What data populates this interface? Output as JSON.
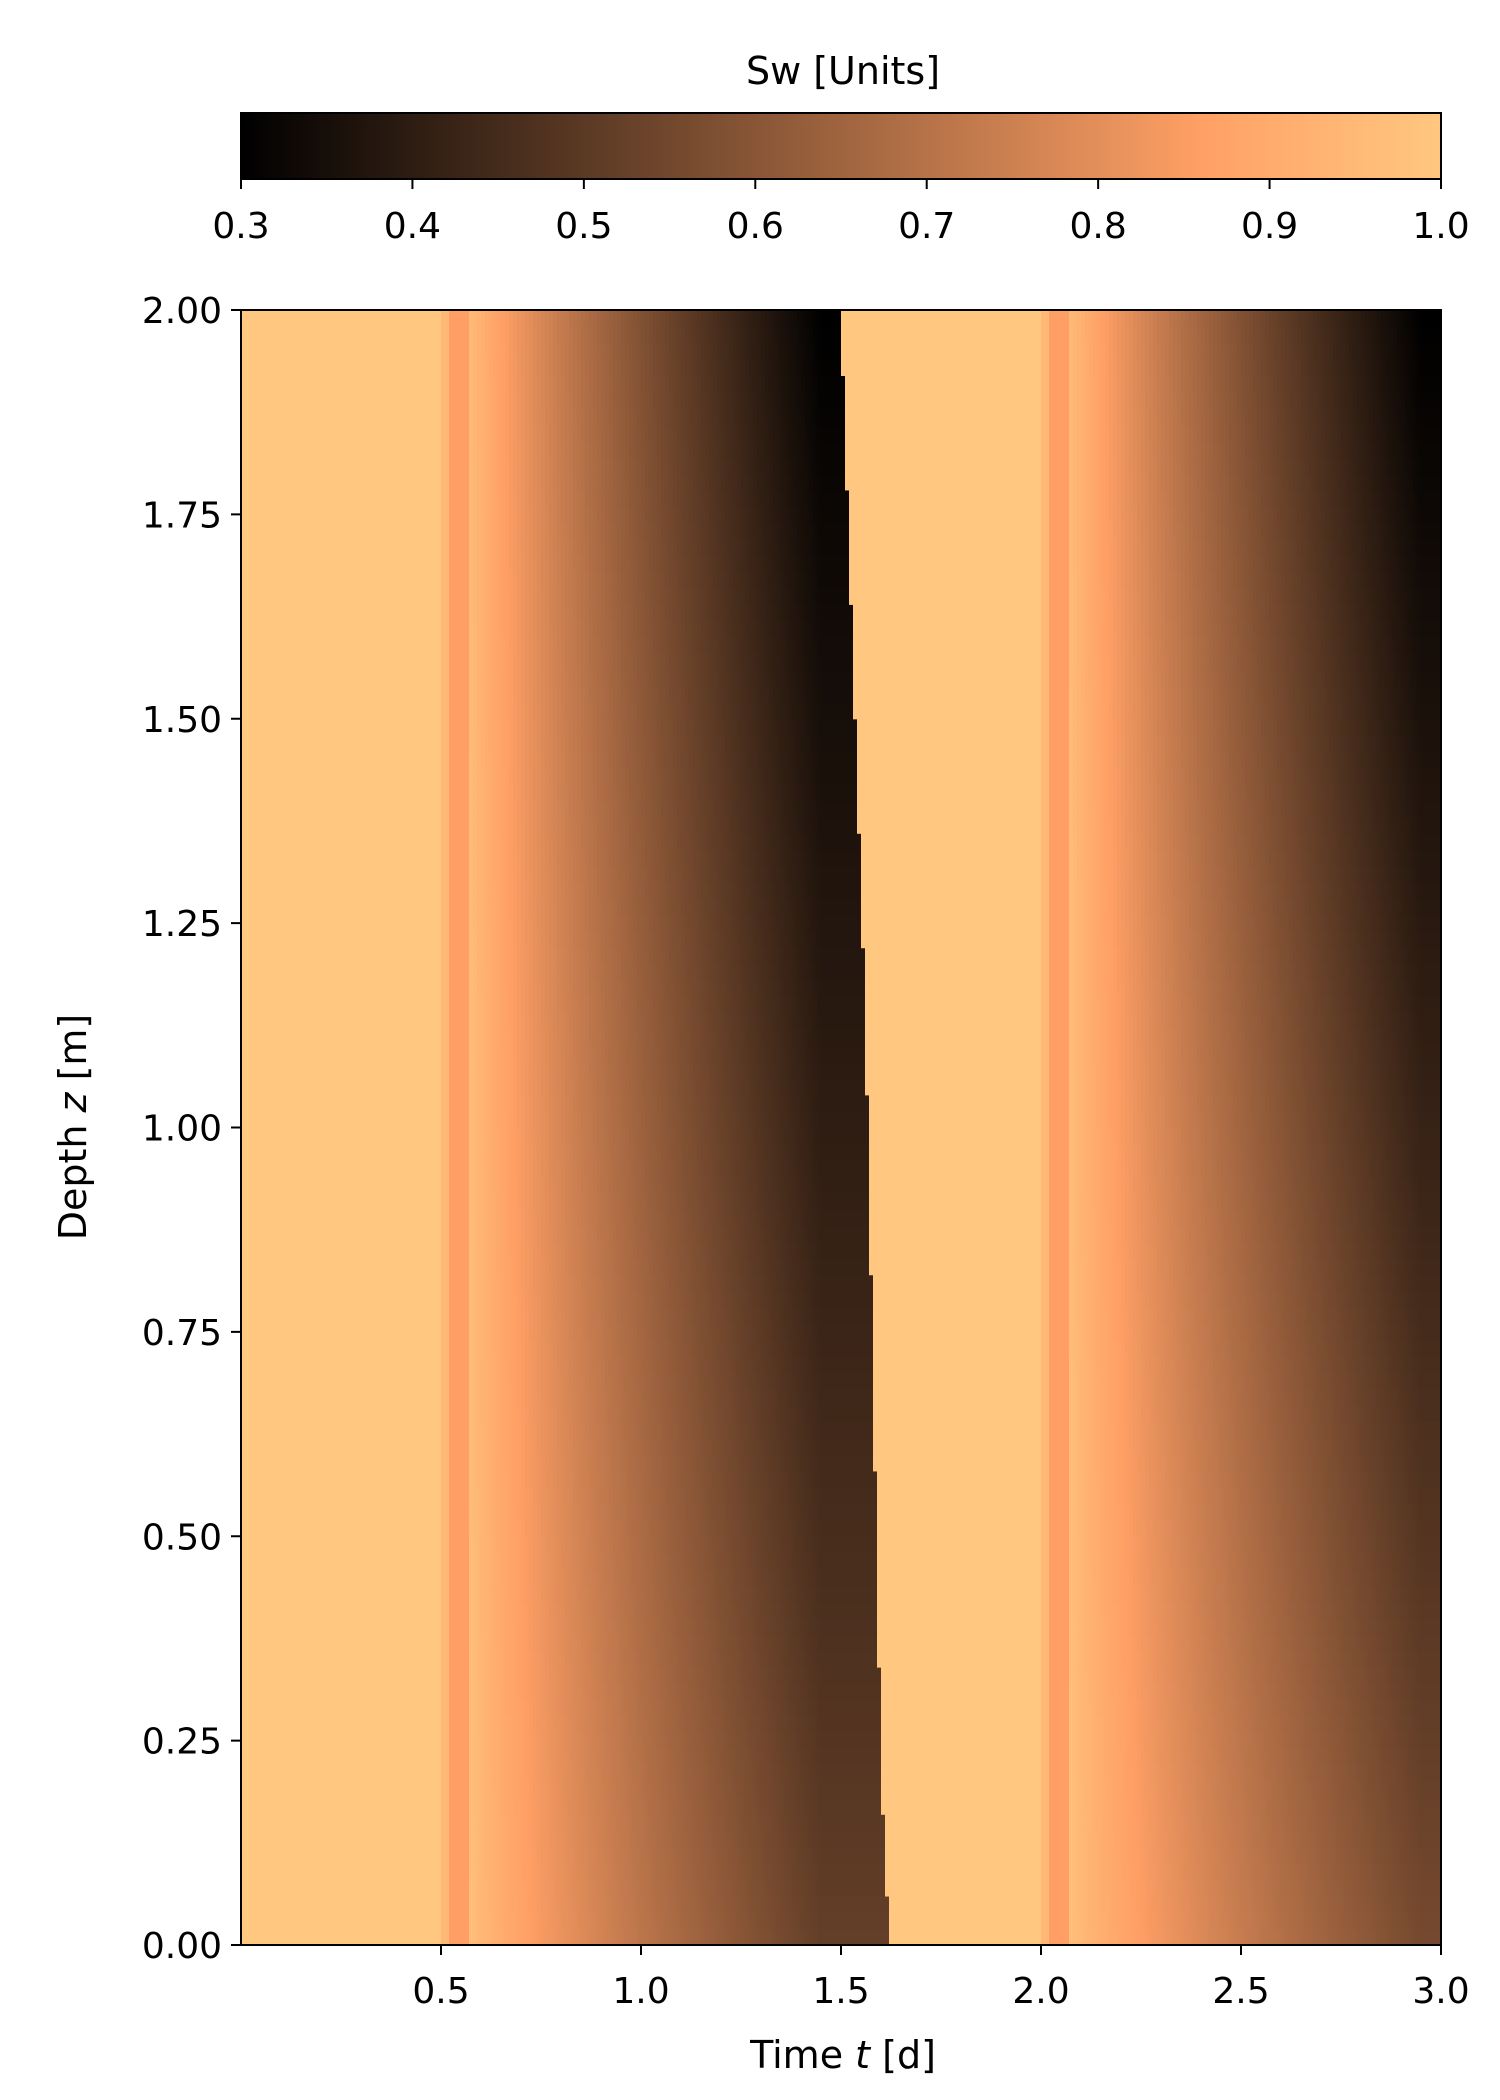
{
  "chart_data": {
    "type": "heatmap",
    "title": "",
    "colorbar": {
      "label": "Sw [Units]",
      "range": [
        0.3,
        1.0
      ],
      "ticks": [
        "0.3",
        "0.4",
        "0.5",
        "0.6",
        "0.7",
        "0.8",
        "0.9",
        "1.0"
      ],
      "colormap": "copper",
      "placement": "top"
    },
    "xlabel": {
      "prefix": "Time ",
      "var": "t",
      "suffix": " [d]"
    },
    "ylabel": {
      "prefix": "Depth ",
      "var": "z",
      "suffix": " [m]"
    },
    "xlim": [
      0.0,
      3.0
    ],
    "ylim": [
      0.0,
      2.0
    ],
    "xticks": [
      "0.5",
      "1.0",
      "1.5",
      "2.0",
      "2.5",
      "3.0"
    ],
    "yticks": [
      "0.00",
      "0.25",
      "0.50",
      "0.75",
      "1.00",
      "1.25",
      "1.50",
      "1.75",
      "2.00"
    ],
    "grid": false,
    "field_description": {
      "saturated_value": 1.0,
      "cycles": [
        {
          "wet_start_t": 0.0,
          "drainage_start_t": 0.5,
          "min_sw_at_top": 0.3,
          "sw_at_bottom_end": 0.52,
          "rewet_front": [
            [
              2.0,
              1.5
            ],
            [
              1.58,
              1.53
            ],
            [
              1.16,
              1.56
            ],
            [
              0.71,
              1.58
            ],
            [
              0.22,
              1.6
            ],
            [
              0.0,
              1.62
            ]
          ]
        },
        {
          "drainage_start_t": 2.0,
          "min_sw_at_top": 0.3,
          "sw_at_bottom_end": 0.56,
          "end_t": 3.0
        }
      ]
    }
  }
}
